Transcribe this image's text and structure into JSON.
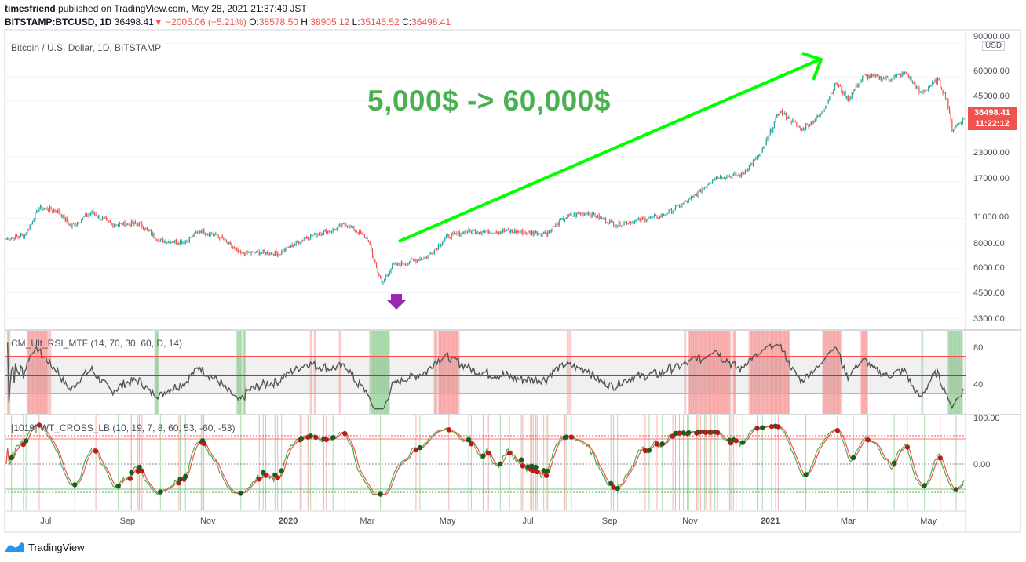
{
  "header": {
    "publisher": "timesfriend",
    "published_text": "published on TradingView.com, May 28, 2021 21:37:49 JST",
    "symbol": "BITSTAMP:BTCUSD, 1D",
    "last": "36498.41",
    "change": "−2005.06 (−5.21%)",
    "o_label": "O:",
    "o_value": "38578.50",
    "h_label": "H:",
    "h_value": "38905.12",
    "l_label": "L:",
    "l_value": "35145.52",
    "c_label": "C:",
    "c_value": "36498.41"
  },
  "main_pane": {
    "title": "Bitcoin / U.S. Dollar, 1D, BITSTAMP",
    "currency": "USD",
    "price_tag_value": "36498.41",
    "price_tag_time": "11:22:12",
    "annotation": "5,000$ -> 60,000$",
    "price_axis": [
      "90000.00",
      "60000.00",
      "45000.00",
      "36498.41",
      "23000.00",
      "17000.00",
      "11000.00",
      "8000.00",
      "6000.00",
      "4500.00",
      "3300.00"
    ]
  },
  "rsi_pane": {
    "title": "CM_Ult_RSI_MTF (14, 70, 30, 60, D, 14)",
    "axis": [
      "80",
      "40"
    ],
    "upper": 70,
    "lower": 30,
    "mid": 50
  },
  "wt_pane": {
    "title": "[1019] WT_CROSS_LB (10, 19, 7, 8, 60, 53, -60, -53)",
    "axis": [
      "100.00",
      "0.00"
    ]
  },
  "time_axis": [
    {
      "label": "Jul",
      "bold": false
    },
    {
      "label": "Sep",
      "bold": false
    },
    {
      "label": "Nov",
      "bold": false
    },
    {
      "label": "2020",
      "bold": true
    },
    {
      "label": "Mar",
      "bold": false
    },
    {
      "label": "May",
      "bold": false
    },
    {
      "label": "Jul",
      "bold": false
    },
    {
      "label": "Sep",
      "bold": false
    },
    {
      "label": "Nov",
      "bold": false
    },
    {
      "label": "2021",
      "bold": true
    },
    {
      "label": "Mar",
      "bold": false
    },
    {
      "label": "May",
      "bold": false
    }
  ],
  "footer": {
    "brand": "TradingView"
  },
  "colors": {
    "up": "#26a69a",
    "down": "#ef5350",
    "arrow": "#00ff00",
    "annotation": "#4caf50",
    "rsi_line": "#555555",
    "rsi_upper": "#ff4d4d",
    "rsi_lower": "#4cff4c",
    "rsi_mid": "#5b4cb3",
    "marker": "#9c27b0"
  },
  "chart_data": {
    "type": "candlestick",
    "title": "Bitcoin / U.S. Dollar, 1D, BITSTAMP",
    "yscale": "log",
    "ylim": [
      2900,
      100000
    ],
    "x_range": [
      "2019-06-01",
      "2021-05-28"
    ],
    "close_path": [
      [
        "2019-06-01",
        8600
      ],
      [
        "2019-06-15",
        9000
      ],
      [
        "2019-06-26",
        12500
      ],
      [
        "2019-07-10",
        12000
      ],
      [
        "2019-07-20",
        10000
      ],
      [
        "2019-08-05",
        11800
      ],
      [
        "2019-08-20",
        10200
      ],
      [
        "2019-09-10",
        10300
      ],
      [
        "2019-09-25",
        8400
      ],
      [
        "2019-10-15",
        8300
      ],
      [
        "2019-10-26",
        9500
      ],
      [
        "2019-11-10",
        8800
      ],
      [
        "2019-11-25",
        7200
      ],
      [
        "2019-12-10",
        7300
      ],
      [
        "2019-12-25",
        7200
      ],
      [
        "2020-01-15",
        8800
      ],
      [
        "2020-02-05",
        9600
      ],
      [
        "2020-02-14",
        10300
      ],
      [
        "2020-03-01",
        8600
      ],
      [
        "2020-03-12",
        5000
      ],
      [
        "2020-03-20",
        6200
      ],
      [
        "2020-04-15",
        6900
      ],
      [
        "2020-05-01",
        8800
      ],
      [
        "2020-05-15",
        9400
      ],
      [
        "2020-06-15",
        9400
      ],
      [
        "2020-07-15",
        9200
      ],
      [
        "2020-07-30",
        11200
      ],
      [
        "2020-08-15",
        11800
      ],
      [
        "2020-09-05",
        10200
      ],
      [
        "2020-10-10",
        11300
      ],
      [
        "2020-11-01",
        13700
      ],
      [
        "2020-11-20",
        18000
      ],
      [
        "2020-12-10",
        18500
      ],
      [
        "2020-12-25",
        24000
      ],
      [
        "2021-01-08",
        40000
      ],
      [
        "2021-01-25",
        32000
      ],
      [
        "2021-02-08",
        38000
      ],
      [
        "2021-02-20",
        56000
      ],
      [
        "2021-03-01",
        46000
      ],
      [
        "2021-03-13",
        61000
      ],
      [
        "2021-04-01",
        58800
      ],
      [
        "2021-04-14",
        63000
      ],
      [
        "2021-04-25",
        49000
      ],
      [
        "2021-05-08",
        58000
      ],
      [
        "2021-05-15",
        46000
      ],
      [
        "2021-05-19",
        32000
      ],
      [
        "2021-05-28",
        36498.41
      ]
    ]
  }
}
